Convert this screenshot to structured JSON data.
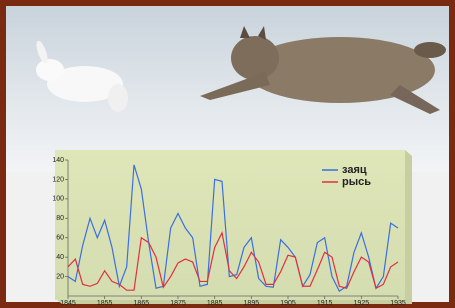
{
  "chart_data": {
    "type": "line",
    "x": [
      1845,
      1847,
      1849,
      1851,
      1853,
      1855,
      1857,
      1859,
      1861,
      1863,
      1865,
      1867,
      1869,
      1871,
      1873,
      1875,
      1877,
      1879,
      1881,
      1883,
      1885,
      1887,
      1889,
      1891,
      1893,
      1895,
      1897,
      1899,
      1901,
      1903,
      1905,
      1907,
      1909,
      1911,
      1913,
      1915,
      1917,
      1919,
      1921,
      1923,
      1925,
      1927,
      1929,
      1931,
      1933,
      1935
    ],
    "series": [
      {
        "name": "заяц",
        "color": "#3a6fe0",
        "values": [
          20,
          15,
          52,
          80,
          60,
          78,
          50,
          10,
          30,
          135,
          110,
          55,
          8,
          10,
          70,
          85,
          70,
          60,
          10,
          12,
          120,
          118,
          20,
          22,
          50,
          60,
          18,
          10,
          9,
          58,
          50,
          40,
          10,
          22,
          55,
          60,
          20,
          5,
          10,
          45,
          65,
          40,
          8,
          20,
          75,
          70
        ]
      },
      {
        "name": "рысь",
        "color": "#e03040",
        "values": [
          30,
          38,
          12,
          10,
          13,
          26,
          15,
          12,
          6,
          6,
          60,
          55,
          40,
          9,
          20,
          34,
          38,
          35,
          15,
          15,
          50,
          65,
          26,
          18,
          30,
          45,
          35,
          12,
          12,
          25,
          42,
          40,
          10,
          10,
          27,
          45,
          40,
          10,
          8,
          25,
          40,
          35,
          8,
          12,
          30,
          35
        ]
      }
    ],
    "xlim": [
      1845,
      1935
    ],
    "xticks": [
      1845,
      1855,
      1865,
      1875,
      1885,
      1895,
      1905,
      1915,
      1925,
      1935
    ],
    "ylim": [
      0,
      140
    ],
    "yticks": [
      20,
      40,
      60,
      80,
      100,
      120,
      140
    ]
  }
}
